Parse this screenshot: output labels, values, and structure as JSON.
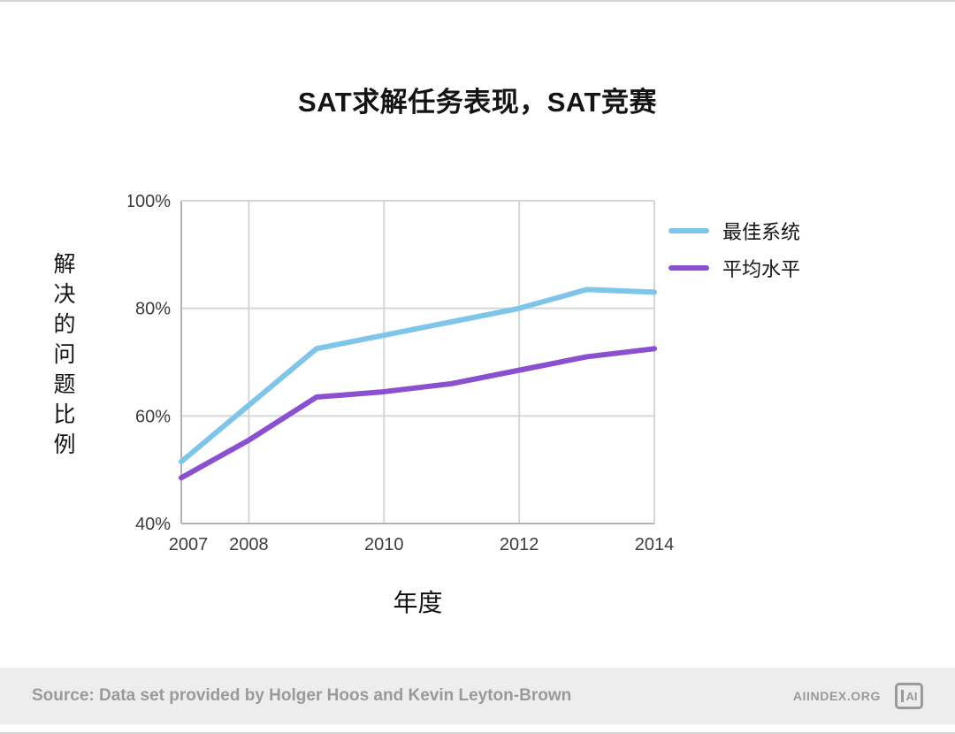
{
  "title": "SAT求解任务表现，SAT竞赛",
  "chart_data": {
    "type": "line",
    "x": [
      2007,
      2008,
      2009,
      2010,
      2011,
      2012,
      2013,
      2014
    ],
    "series": [
      {
        "name": "最佳系统",
        "color": "#7FC5E9",
        "values": [
          51.5,
          62,
          72.5,
          75,
          77.5,
          80,
          83.5,
          83
        ]
      },
      {
        "name": "平均水平",
        "color": "#8A50D0",
        "values": [
          48.5,
          55.5,
          63.5,
          64.5,
          66,
          68.5,
          71,
          72.5
        ]
      }
    ],
    "xlabel": "年度",
    "ylabel": "解决的问题比例",
    "ylim": [
      40,
      100
    ],
    "yticks": [
      40,
      60,
      80,
      100
    ],
    "ytick_labels": [
      "40%",
      "60%",
      "80%",
      "100%"
    ],
    "xticks": [
      2007,
      2008,
      2010,
      2012,
      2014
    ],
    "grid": true,
    "legend_position": "top-right",
    "grid_color": "#d6d6d6",
    "axis_color": "#b3b3b3",
    "tick_color": "#3d3d3d"
  },
  "footer": {
    "source": "Source: Data set provided by Holger Hoos and Kevin Leyton-Brown",
    "brand": "AIINDEX.ORG",
    "logo_text": "AI"
  }
}
